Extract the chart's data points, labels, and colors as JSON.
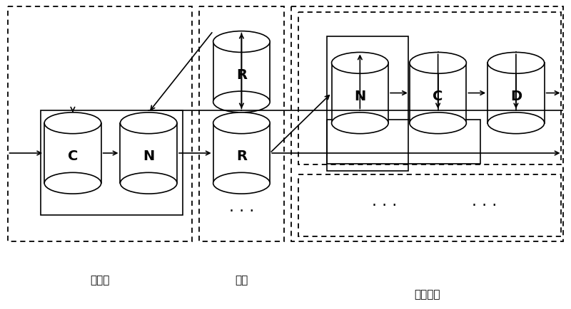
{
  "fig_width": 8.0,
  "fig_height": 4.34,
  "dpi": 100,
  "bg_color": "#ffffff",
  "labels": {
    "client": "客户端",
    "network": "网络",
    "storage": "存储系统"
  },
  "label_fontsize": 11,
  "cylinder_labels": {
    "C_client": "C",
    "N_client": "N",
    "R_top": "R",
    "R_bottom": "R",
    "N_storage": "N",
    "C_storage": "C",
    "D_storage": "D"
  },
  "cyl_label_fontsize": 14
}
